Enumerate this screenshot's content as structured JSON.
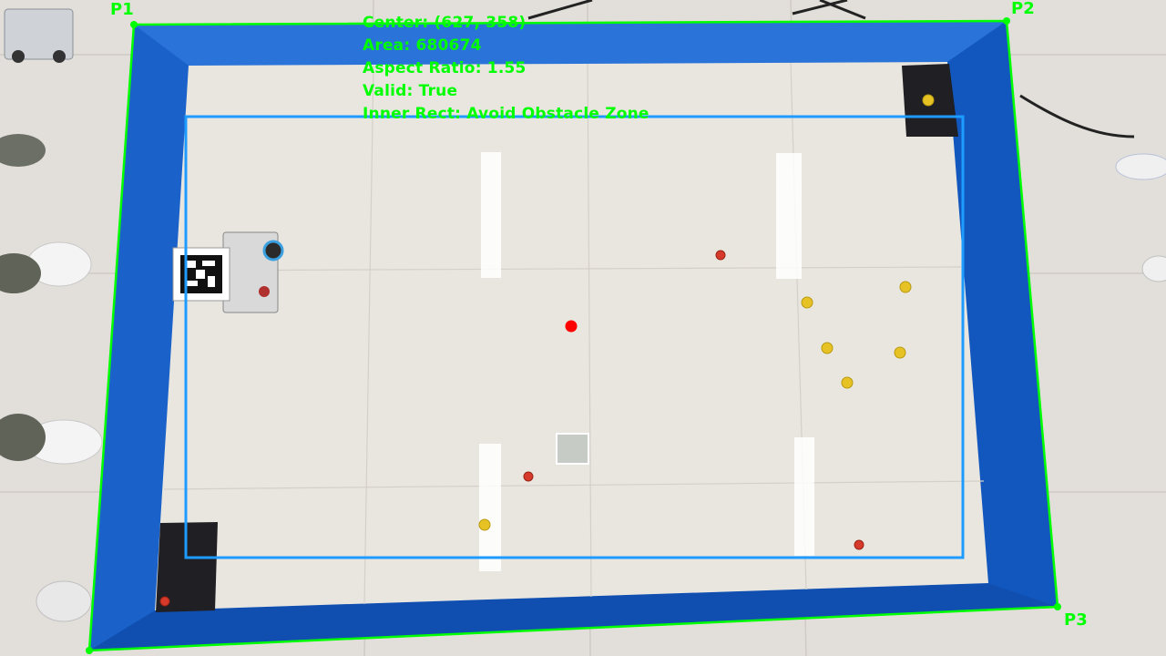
{
  "detection": {
    "center_text": "Center: (627, 358)",
    "area_text": "Area: 680674",
    "aspect_text": "Aspect Ratio: 1.55",
    "valid_text": "Valid: True",
    "inner_text": "Inner Rect: Avoid Obstacle Zone"
  },
  "corners": {
    "p1": "P1",
    "p2": "P2",
    "p3": "P3"
  },
  "colors": {
    "outline": "#00ff00",
    "inner_rect": "#1e9bff",
    "center_marker": "#ff0000",
    "arena_wall": "#1560c8",
    "floor": "#e8e5df"
  }
}
